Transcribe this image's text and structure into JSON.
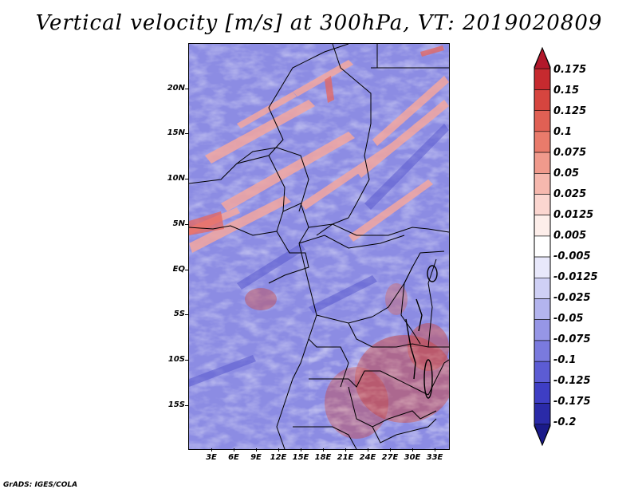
{
  "title": "Vertical velocity [m/s] at 300hPa, VT: 2019020809",
  "credit": "GrADS: IGES/COLA",
  "lat_labels": [
    "20N",
    "15N",
    "10N",
    "5N",
    "EQ",
    "5S",
    "10S",
    "15S"
  ],
  "lon_labels": [
    "3E",
    "6E",
    "9E",
    "12E",
    "15E",
    "18E",
    "21E",
    "24E",
    "27E",
    "30E",
    "33E"
  ],
  "colorbar": {
    "labels": [
      "0.175",
      "0.15",
      "0.125",
      "0.1",
      "0.075",
      "0.05",
      "0.025",
      "0.0125",
      "0.005",
      "-0.005",
      "-0.0125",
      "-0.025",
      "-0.05",
      "-0.075",
      "-0.1",
      "-0.125",
      "-0.175",
      "-0.2"
    ],
    "colors": [
      "#b2182b",
      "#c62a2f",
      "#d6453f",
      "#e06054",
      "#e97b6b",
      "#f09a8c",
      "#f6b8ae",
      "#fbd6d0",
      "#fdeeea",
      "#ffffff",
      "#e8e8fb",
      "#cfd0f5",
      "#b3b4ee",
      "#9696e6",
      "#7a7ade",
      "#5c5cd4",
      "#3e3ec4",
      "#2a2aa8",
      "#1a1a8a"
    ]
  }
}
